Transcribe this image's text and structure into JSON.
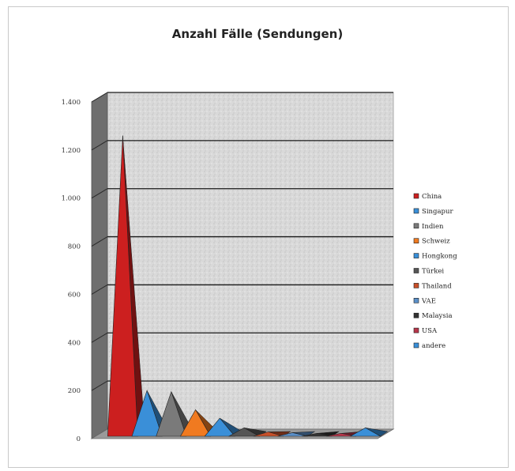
{
  "chart_data": {
    "type": "area",
    "title": "Anzahl Fälle (Sendungen)",
    "xlabel": "",
    "ylabel": "",
    "ylim": [
      0,
      1400
    ],
    "yticks": [
      0,
      200,
      400,
      600,
      800,
      1000,
      1200,
      1400
    ],
    "ytick_labels": [
      "0",
      "200",
      "400",
      "600",
      "800",
      "1.000",
      "1.200",
      "1.400"
    ],
    "grid": true,
    "legend_position": "right",
    "chart_style": "3d-pyramid",
    "series": [
      {
        "name": "China",
        "value": 1250,
        "color": "#cc1f1f"
      },
      {
        "name": "Singapur",
        "value": 190,
        "color": "#3a8fd8"
      },
      {
        "name": "Indien",
        "value": 185,
        "color": "#7a7a7a"
      },
      {
        "name": "Schweiz",
        "value": 110,
        "color": "#f07a20"
      },
      {
        "name": "Hongkong",
        "value": 75,
        "color": "#3a8fd8"
      },
      {
        "name": "Türkei",
        "value": 35,
        "color": "#555555"
      },
      {
        "name": "Thailand",
        "value": 18,
        "color": "#c8502a"
      },
      {
        "name": "VAE",
        "value": 15,
        "color": "#5a8fc8"
      },
      {
        "name": "Malaysia",
        "value": 12,
        "color": "#333333"
      },
      {
        "name": "USA",
        "value": 12,
        "color": "#b8354a"
      },
      {
        "name": "andere",
        "value": 35,
        "color": "#3a8fd8"
      }
    ]
  }
}
